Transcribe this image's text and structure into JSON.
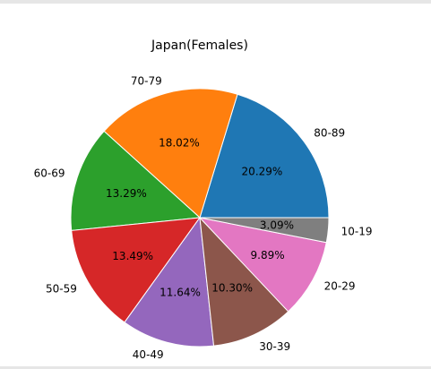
{
  "chart_data": {
    "type": "pie",
    "title": "Japan(Females)",
    "start_angle_deg": 0,
    "direction": "counterclockwise",
    "slices": [
      {
        "label": "80-89",
        "value": 20.29,
        "pct_label": "20.29%",
        "color": "#1f77b4"
      },
      {
        "label": "70-79",
        "value": 18.02,
        "pct_label": "18.02%",
        "color": "#ff7f0e"
      },
      {
        "label": "60-69",
        "value": 13.29,
        "pct_label": "13.29%",
        "color": "#2ca02c"
      },
      {
        "label": "50-59",
        "value": 13.49,
        "pct_label": "13.49%",
        "color": "#d62728"
      },
      {
        "label": "40-49",
        "value": 11.64,
        "pct_label": "11.64%",
        "color": "#9467bd"
      },
      {
        "label": "30-39",
        "value": 10.3,
        "pct_label": "10.30%",
        "color": "#8c564b"
      },
      {
        "label": "20-29",
        "value": 9.89,
        "pct_label": "9.89%",
        "color": "#e377c2"
      },
      {
        "label": "10-19",
        "value": 3.09,
        "pct_label": "3.09%",
        "color": "#7f7f7f"
      }
    ]
  }
}
